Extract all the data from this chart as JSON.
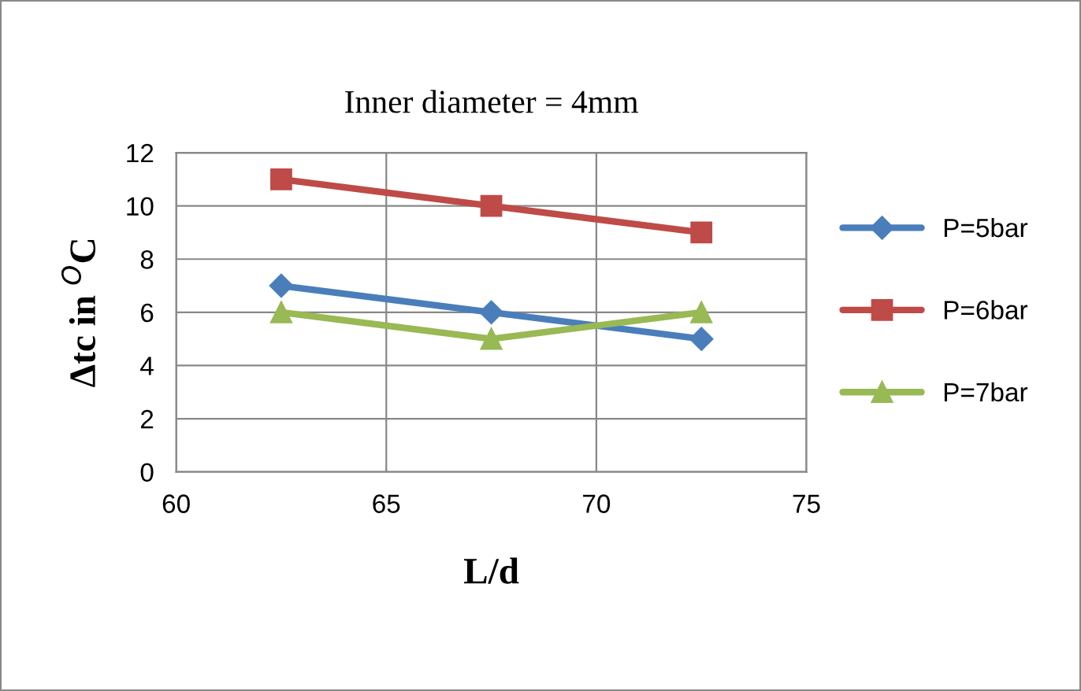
{
  "chart_data": {
    "type": "line",
    "title": "Inner diameter = 4mm",
    "xlabel": "L/d",
    "ylabel": "Δtc in $^{O}$C",
    "x": [
      62.5,
      67.5,
      72.5
    ],
    "series": [
      {
        "name": "P=5bar",
        "color": "#4a7ebb",
        "values": [
          7,
          6,
          5
        ],
        "marker": "diamond"
      },
      {
        "name": "P=6bar",
        "color": "#be4b48",
        "values": [
          11,
          10,
          9
        ],
        "marker": "square"
      },
      {
        "name": "P=7bar",
        "color": "#98b954",
        "values": [
          6,
          5,
          6
        ],
        "marker": "triangle"
      }
    ],
    "xlim": [
      60,
      75
    ],
    "xticks": [
      60,
      65,
      70,
      75
    ],
    "ylim": [
      0,
      12
    ],
    "yticks": [
      0,
      2,
      4,
      6,
      8,
      10,
      12
    ],
    "grid": true,
    "legend": "right",
    "line_style": "solid"
  }
}
